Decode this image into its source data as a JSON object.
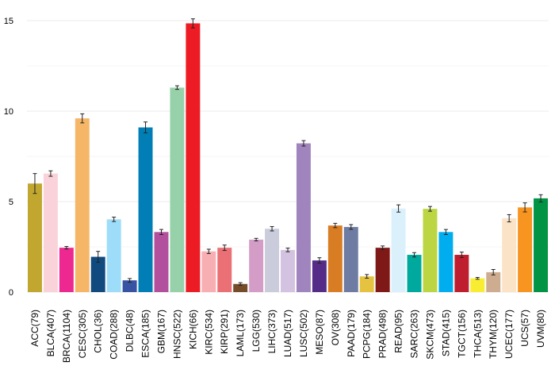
{
  "chart_data": {
    "type": "bar",
    "ylim": [
      0,
      15.8
    ],
    "yticks": [
      0,
      5,
      10,
      15
    ],
    "grid": true,
    "legend": "none",
    "categories": [
      "ACC(79)",
      "BLCA(407)",
      "BRCA(1104)",
      "CESC(305)",
      "CHOL(36)",
      "COAD(288)",
      "DLBC(48)",
      "ESCA(185)",
      "GBM(167)",
      "HNSC(522)",
      "KICH(66)",
      "KIRC(534)",
      "KIRP(291)",
      "LAML(173)",
      "LGG(530)",
      "LIHC(373)",
      "LUAD(517)",
      "LUSC(502)",
      "MESO(87)",
      "OV(308)",
      "PAAD(179)",
      "PCPG(184)",
      "PRAD(498)",
      "READ(95)",
      "SARC(263)",
      "SKCM(473)",
      "STAD(415)",
      "TGCT(156)",
      "THCA(513)",
      "THYM(120)",
      "UCEC(177)",
      "UCS(57)",
      "UVM(80)"
    ],
    "values": [
      6.0,
      6.55,
      2.45,
      9.6,
      1.95,
      4.02,
      0.65,
      9.1,
      3.32,
      11.3,
      14.85,
      2.25,
      2.45,
      0.45,
      2.9,
      3.5,
      2.33,
      8.22,
      1.75,
      3.68,
      3.6,
      0.87,
      2.45,
      4.62,
      2.06,
      4.6,
      3.32,
      2.06,
      0.76,
      1.1,
      4.08,
      4.68,
      5.18
    ],
    "errors": [
      0.55,
      0.15,
      0.07,
      0.25,
      0.3,
      0.12,
      0.1,
      0.3,
      0.14,
      0.1,
      0.25,
      0.12,
      0.15,
      0.07,
      0.07,
      0.12,
      0.1,
      0.15,
      0.15,
      0.12,
      0.13,
      0.1,
      0.1,
      0.2,
      0.12,
      0.13,
      0.14,
      0.15,
      0.05,
      0.15,
      0.2,
      0.25,
      0.2
    ],
    "colors": [
      "#C1A72F",
      "#FAD2D9",
      "#ED2891",
      "#F6B667",
      "#104A7F",
      "#9EDDF9",
      "#3953A4",
      "#007EB5",
      "#B2509E",
      "#97D1A9",
      "#ED1C24",
      "#F8AFB3",
      "#EA7075",
      "#754C29",
      "#D49DC7",
      "#CACCDB",
      "#D3C3E0",
      "#A084BD",
      "#542C88",
      "#D97D25",
      "#6E7BA2",
      "#E6C241",
      "#7E1918",
      "#DAF1FC",
      "#00A99D",
      "#BBD642",
      "#00AEEF",
      "#BE1E2D",
      "#F9ED32",
      "#CEAC8F",
      "#FBE3C7",
      "#F89420",
      "#009444"
    ]
  }
}
